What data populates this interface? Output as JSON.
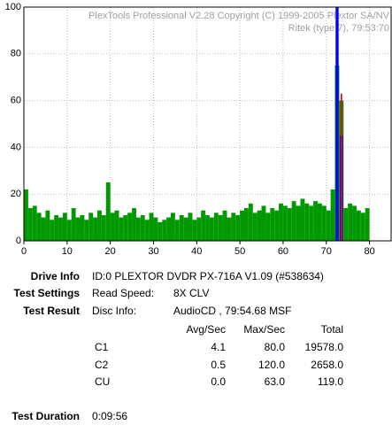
{
  "chart_data": {
    "type": "bar",
    "header": "PlexTools Professional V2.28 Copyright (C) 1999-2005 Plextor SA/NV",
    "subheader": "Ritek (type 7), 79:53:70",
    "x": [
      0,
      1,
      2,
      3,
      4,
      5,
      6,
      7,
      8,
      9,
      10,
      11,
      12,
      13,
      14,
      15,
      16,
      17,
      18,
      19,
      20,
      21,
      22,
      23,
      24,
      25,
      26,
      27,
      28,
      29,
      30,
      31,
      32,
      33,
      34,
      35,
      36,
      37,
      38,
      39,
      40,
      41,
      42,
      43,
      44,
      45,
      46,
      47,
      48,
      49,
      50,
      51,
      52,
      53,
      54,
      55,
      56,
      57,
      58,
      59,
      60,
      61,
      62,
      63,
      64,
      65,
      66,
      67,
      68,
      69,
      70,
      71,
      72,
      73,
      74,
      75,
      76,
      77,
      78,
      79
    ],
    "series": [
      {
        "color": "#009900",
        "values": [
          22,
          14,
          15,
          12,
          10,
          13,
          9,
          11,
          10,
          12,
          9,
          14,
          10,
          11,
          9,
          12,
          10,
          13,
          11,
          25,
          12,
          13,
          10,
          11,
          12,
          14,
          10,
          11,
          9,
          12,
          10,
          8,
          9,
          10,
          12,
          9,
          11,
          10,
          12,
          9,
          10,
          13,
          11,
          10,
          12,
          11,
          13,
          10,
          12,
          11,
          13,
          14,
          16,
          12,
          13,
          15,
          12,
          14,
          13,
          16,
          15,
          14,
          17,
          15,
          18,
          16,
          15,
          17,
          16,
          15,
          13,
          22,
          75,
          60,
          14,
          16,
          15,
          13,
          12,
          14
        ]
      },
      {
        "color": "#0000ff",
        "values": [
          0,
          0,
          0,
          0,
          0,
          0,
          0,
          0,
          0,
          0,
          0,
          0,
          0,
          0,
          0,
          0,
          0,
          0,
          0,
          0,
          0,
          0,
          0,
          0,
          0,
          0,
          0,
          0,
          0,
          0,
          0,
          0,
          0,
          0,
          0,
          0,
          0,
          0,
          0,
          0,
          0,
          0,
          0,
          0,
          0,
          0,
          0,
          0,
          0,
          0,
          0,
          0,
          0,
          0,
          0,
          0,
          0,
          0,
          0,
          0,
          0,
          0,
          0,
          0,
          0,
          0,
          0,
          0,
          0,
          0,
          0,
          0,
          100,
          45,
          0,
          0,
          0,
          0,
          0,
          0
        ]
      },
      {
        "color": "#ff0000",
        "values": [
          0,
          0,
          0,
          0,
          0,
          0,
          0,
          0,
          0,
          0,
          0,
          0,
          0,
          0,
          0,
          0,
          0,
          0,
          0,
          0,
          0,
          0,
          0,
          0,
          0,
          0,
          0,
          0,
          0,
          0,
          0,
          0,
          0,
          0,
          0,
          0,
          0,
          0,
          0,
          0,
          0,
          0,
          0,
          0,
          0,
          0,
          0,
          0,
          0,
          0,
          0,
          0,
          0,
          0,
          0,
          0,
          0,
          0,
          0,
          0,
          0,
          0,
          0,
          0,
          0,
          0,
          0,
          0,
          0,
          0,
          0,
          0,
          0,
          63,
          0,
          0,
          0,
          0,
          0,
          0
        ]
      }
    ],
    "xlim": [
      0,
      85
    ],
    "xticks": [
      0,
      10,
      20,
      30,
      40,
      50,
      60,
      70,
      80
    ],
    "ylim": [
      0,
      100
    ],
    "yticks": [
      0,
      20,
      40,
      60,
      80,
      100
    ],
    "grid": true
  },
  "info": {
    "drive_info": {
      "label": "Drive Info",
      "value": "ID:0 PLEXTOR DVDR PX-716A V1.09 (#538634)"
    },
    "test_settings": {
      "label": "Test Settings",
      "key": "Read Speed:",
      "value": "8X CLV"
    },
    "test_result": {
      "label": "Test Result",
      "key": "Disc Info:",
      "value": "AudioCD , 79:54.68 MSF"
    },
    "table": {
      "columns": [
        "Avg/Sec",
        "Max/Sec",
        "Total"
      ],
      "rows": [
        [
          "C1",
          "4.1",
          "80.0",
          "19578.0"
        ],
        [
          "C2",
          "0.5",
          "120.0",
          "2658.0"
        ],
        [
          "CU",
          "0.0",
          "63.0",
          "119.0"
        ]
      ]
    },
    "test_duration": {
      "label": "Test Duration",
      "value": "0:09:56"
    }
  }
}
